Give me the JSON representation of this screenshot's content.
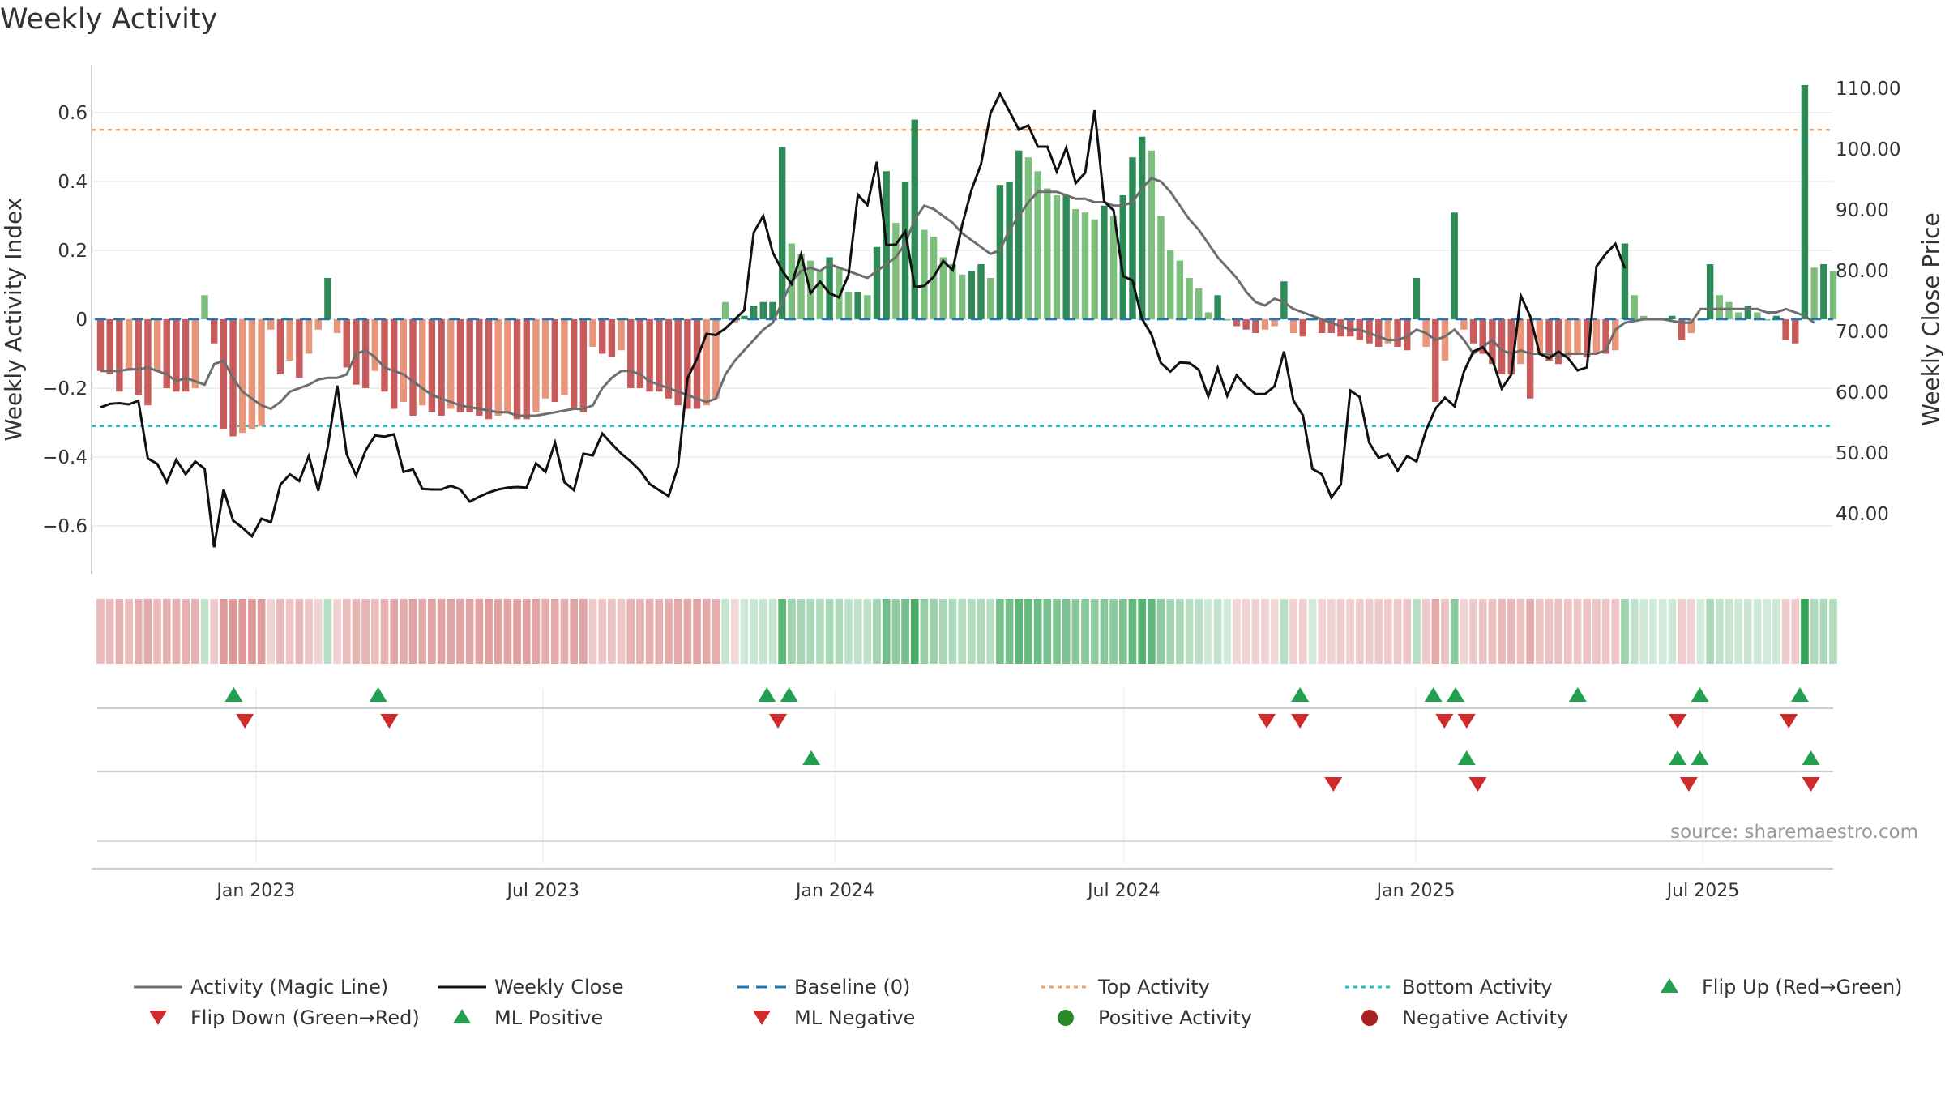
{
  "chart_data": {
    "type": "bar",
    "title": "Weekly Activity",
    "ylabel_left": "Weekly Activity Index",
    "ylabel_right": "Weekly Close Price",
    "yticks_left": [
      "0.6",
      "0.4",
      "0.2",
      "0",
      "−0.2",
      "−0.4",
      "−0.6"
    ],
    "ytick_values_left": [
      0.6,
      0.4,
      0.2,
      0,
      -0.2,
      -0.4,
      -0.6
    ],
    "ylim_left": [
      -0.74,
      0.74
    ],
    "yticks_right": [
      "110.00",
      "100.00",
      "90.00",
      "80.00",
      "70.00",
      "60.00",
      "50.00",
      "40.00"
    ],
    "ytick_values_right": [
      110,
      100,
      90,
      80,
      70,
      60,
      50,
      40
    ],
    "ylim_right": [
      31.2,
      117.4
    ],
    "x_start": "2022-09-25",
    "x_end": "2025-09-21",
    "xtick_labels": [
      "Jan 2023",
      "Jul 2023",
      "Jan 2024",
      "Jul 2024",
      "Jan 2025",
      "Jul 2025"
    ],
    "xtick_dates": [
      "2023-01-01",
      "2023-07-01",
      "2024-01-01",
      "2024-07-01",
      "2025-01-01",
      "2025-07-01"
    ],
    "top_activity": 0.55,
    "bottom_activity": -0.31,
    "source": "source: sharemaestro.com",
    "activity": [
      -0.15,
      -0.16,
      -0.21,
      -0.15,
      -0.22,
      -0.25,
      -0.15,
      -0.2,
      -0.21,
      -0.21,
      -0.2,
      0.07,
      -0.07,
      -0.32,
      -0.34,
      -0.33,
      -0.32,
      -0.31,
      -0.03,
      -0.16,
      -0.12,
      -0.17,
      -0.1,
      -0.03,
      0.12,
      -0.04,
      -0.14,
      -0.19,
      -0.2,
      -0.15,
      -0.21,
      -0.26,
      -0.24,
      -0.28,
      -0.25,
      -0.27,
      -0.28,
      -0.26,
      -0.27,
      -0.27,
      -0.28,
      -0.29,
      -0.28,
      -0.27,
      -0.29,
      -0.29,
      -0.27,
      -0.23,
      -0.24,
      -0.22,
      -0.26,
      -0.27,
      -0.08,
      -0.1,
      -0.11,
      -0.09,
      -0.2,
      -0.2,
      -0.21,
      -0.21,
      -0.23,
      -0.25,
      -0.26,
      -0.26,
      -0.25,
      -0.23,
      0.05,
      -0.01,
      0.01,
      0.04,
      0.05,
      0.05,
      0.5,
      0.22,
      0.19,
      0.17,
      0.14,
      0.18,
      0.15,
      0.08,
      0.08,
      0.07,
      0.21,
      0.43,
      0.28,
      0.4,
      0.58,
      0.26,
      0.24,
      0.18,
      0.16,
      0.13,
      0.14,
      0.16,
      0.12,
      0.39,
      0.4,
      0.49,
      0.47,
      0.43,
      0.38,
      0.36,
      0.36,
      0.32,
      0.31,
      0.29,
      0.33,
      0.3,
      0.36,
      0.47,
      0.53,
      0.49,
      0.3,
      0.2,
      0.17,
      0.12,
      0.09,
      0.02,
      0.07,
      0.0,
      -0.02,
      -0.03,
      -0.04,
      -0.03,
      -0.02,
      0.11,
      -0.04,
      -0.05,
      0.0,
      -0.04,
      -0.04,
      -0.05,
      -0.05,
      -0.06,
      -0.07,
      -0.08,
      -0.07,
      -0.08,
      -0.09,
      0.12,
      -0.08,
      -0.24,
      -0.12,
      0.31,
      -0.03,
      -0.07,
      -0.1,
      -0.13,
      -0.16,
      -0.16,
      -0.13,
      -0.23,
      -0.1,
      -0.12,
      -0.13,
      -0.11,
      -0.1,
      -0.11,
      -0.1,
      -0.1,
      -0.09,
      0.22,
      0.07,
      0.01,
      0.0,
      0.0,
      0.01,
      -0.06,
      -0.04,
      0.0,
      0.16,
      0.07,
      0.05,
      0.02,
      0.04,
      0.02,
      0.0,
      0.01,
      -0.06,
      -0.07,
      0.68,
      0.15,
      0.16,
      0.14
    ],
    "magic_line": [
      -0.15,
      -0.15,
      -0.15,
      -0.145,
      -0.145,
      -0.14,
      -0.15,
      -0.16,
      -0.18,
      -0.17,
      -0.18,
      -0.19,
      -0.13,
      -0.12,
      -0.17,
      -0.21,
      -0.23,
      -0.25,
      -0.26,
      -0.24,
      -0.21,
      -0.2,
      -0.19,
      -0.175,
      -0.17,
      -0.17,
      -0.16,
      -0.1,
      -0.09,
      -0.11,
      -0.14,
      -0.15,
      -0.16,
      -0.18,
      -0.2,
      -0.22,
      -0.23,
      -0.24,
      -0.25,
      -0.255,
      -0.26,
      -0.265,
      -0.27,
      -0.27,
      -0.28,
      -0.28,
      -0.28,
      -0.275,
      -0.27,
      -0.265,
      -0.26,
      -0.26,
      -0.25,
      -0.2,
      -0.17,
      -0.15,
      -0.15,
      -0.16,
      -0.18,
      -0.19,
      -0.2,
      -0.21,
      -0.22,
      -0.23,
      -0.24,
      -0.23,
      -0.16,
      -0.12,
      -0.09,
      -0.06,
      -0.03,
      -0.01,
      0.05,
      0.11,
      0.14,
      0.15,
      0.14,
      0.16,
      0.15,
      0.14,
      0.13,
      0.12,
      0.14,
      0.16,
      0.18,
      0.22,
      0.29,
      0.33,
      0.32,
      0.3,
      0.28,
      0.25,
      0.23,
      0.21,
      0.19,
      0.2,
      0.26,
      0.3,
      0.34,
      0.37,
      0.37,
      0.37,
      0.36,
      0.35,
      0.35,
      0.34,
      0.34,
      0.33,
      0.33,
      0.34,
      0.38,
      0.41,
      0.4,
      0.37,
      0.33,
      0.29,
      0.26,
      0.22,
      0.18,
      0.15,
      0.12,
      0.08,
      0.05,
      0.04,
      0.06,
      0.05,
      0.03,
      0.02,
      0.01,
      0.0,
      -0.01,
      -0.02,
      -0.03,
      -0.03,
      -0.04,
      -0.05,
      -0.06,
      -0.06,
      -0.05,
      -0.03,
      -0.04,
      -0.06,
      -0.05,
      -0.03,
      -0.06,
      -0.1,
      -0.08,
      -0.06,
      -0.09,
      -0.1,
      -0.09,
      -0.1,
      -0.1,
      -0.1,
      -0.11,
      -0.1,
      -0.1,
      -0.1,
      -0.1,
      -0.09,
      -0.03,
      -0.01,
      -0.005,
      0.0,
      0.0,
      0.0,
      -0.005,
      -0.01,
      -0.01,
      0.03,
      0.03,
      0.03,
      0.03,
      0.03,
      0.03,
      0.03,
      0.02,
      0.02,
      0.03,
      0.02,
      0.01,
      -0.01
    ],
    "weekly_close": [
      57.5,
      58.1,
      58.2,
      58.0,
      58.6,
      49.1,
      48.2,
      45.2,
      48.9,
      46.5,
      48.6,
      47.4,
      34.5,
      44.0,
      38.9,
      37.7,
      36.3,
      39.2,
      38.6,
      44.8,
      46.5,
      45.4,
      49.5,
      43.8,
      51.0,
      61.1,
      49.8,
      46.3,
      50.4,
      52.9,
      52.7,
      53.1,
      46.9,
      47.3,
      44.1,
      44.0,
      44.0,
      44.6,
      44.0,
      42.0,
      42.8,
      43.5,
      44.0,
      44.3,
      44.4,
      44.3,
      48.3,
      46.9,
      51.7,
      45.2,
      43.9,
      49.9,
      49.6,
      53.2,
      51.5,
      49.9,
      48.6,
      47.1,
      44.9,
      43.9,
      42.9,
      47.8,
      62.3,
      65.5,
      69.6,
      69.4,
      70.5,
      72.0,
      73.5,
      86.3,
      89.0,
      83.0,
      80.0,
      77.8,
      82.7,
      76.3,
      78.2,
      76.3,
      75.6,
      79.3,
      92.5,
      90.8,
      97.9,
      84.2,
      84.3,
      86.5,
      77.3,
      77.5,
      79.0,
      81.6,
      80.1,
      87.5,
      93.3,
      97.5,
      105.9,
      109.1,
      106.2,
      103.2,
      103.9,
      100.4,
      100.4,
      96.3,
      100.2,
      94.4,
      96.1,
      106.4,
      91.4,
      89.9,
      79.1,
      78.4,
      72.1,
      69.5,
      64.8,
      63.4,
      64.9,
      64.8,
      63.7,
      59.3,
      64.0,
      59.4,
      62.8,
      61.0,
      59.7,
      59.7,
      61.0,
      66.7,
      58.6,
      56.2,
      47.4,
      46.5,
      42.7,
      44.8,
      60.3,
      59.2,
      51.7,
      49.2,
      49.8,
      47.1,
      49.5,
      48.6,
      53.7,
      57.3,
      59.1,
      57.7,
      63.4,
      66.7,
      67.4,
      65.4,
      60.6,
      62.9,
      75.9,
      72.5,
      66.3,
      65.6,
      66.7,
      65.6,
      63.6,
      64.1,
      80.7,
      82.8,
      84.4,
      80.4
    ],
    "flip_up_markers": [
      "2022-12-18",
      "2023-03-19",
      "2023-11-19",
      "2023-12-03",
      "2024-10-20",
      "2025-01-12",
      "2025-01-26",
      "2025-04-13",
      "2025-06-29",
      "2025-08-31"
    ],
    "flip_down_markers": [
      "2022-12-25",
      "2023-03-26",
      "2023-11-26",
      "2024-09-29",
      "2024-10-20",
      "2025-01-19",
      "2025-02-02",
      "2025-06-15",
      "2025-08-24"
    ],
    "ml_positive_markers": [
      "2023-12-17",
      "2025-02-02",
      "2025-06-15",
      "2025-06-29",
      "2025-09-07"
    ],
    "ml_negative_markers": [
      "2024-11-10",
      "2025-02-09",
      "2025-06-22",
      "2025-09-07"
    ],
    "legend": [
      "Activity (Magic Line)",
      "Weekly Close",
      "Baseline (0)",
      "Top Activity",
      "Bottom Activity",
      "Flip Up (Red→Green)",
      "Flip Down (Green→Red)",
      "ML Positive",
      "ML Negative",
      "Positive Activity",
      "Negative Activity"
    ]
  },
  "colors": {
    "pos_strong": "#2e8b57",
    "pos_weak": "#7cbf7c",
    "neg_strong": "#c85c5c",
    "neg_weak": "#e8957a",
    "magic_line": "#6e6e6e",
    "close_line": "#111111",
    "baseline": "#1f77b4",
    "top_line": "#f0a060",
    "bottom_line": "#20c0c0",
    "marker_up": "#22a050",
    "marker_down": "#d02a2a",
    "dot_pos": "#2a8a2a",
    "dot_neg": "#a82020",
    "grid": "#ececec"
  }
}
